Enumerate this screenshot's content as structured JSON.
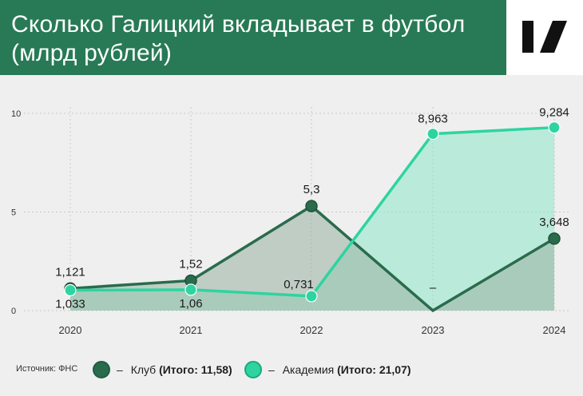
{
  "header": {
    "title_line1": "Сколько Галицкий вкладывает в футбол",
    "title_line2": "(млрд рублей)"
  },
  "footer": {
    "source": "Источник: ФНС",
    "legend": [
      {
        "dash": "–",
        "name": "Клуб",
        "total": "(Итого: 11,58)",
        "color": "#2a6b4c"
      },
      {
        "dash": "–",
        "name": "Академия",
        "total": "(Итого: 21,07)",
        "color": "#2ed4a0"
      }
    ]
  },
  "chart_data": {
    "type": "line",
    "x": [
      "2020",
      "2021",
      "2022",
      "2023",
      "2024"
    ],
    "ylim": [
      0,
      10
    ],
    "yticks": [
      "0",
      "5",
      "10"
    ],
    "grid": "dashed",
    "series": [
      {
        "name": "Клуб",
        "values": [
          1.121,
          1.52,
          5.3,
          0,
          3.648
        ],
        "labels": [
          "1,121",
          "1,52",
          "5,3",
          "–",
          "3,648"
        ],
        "color": "#2a6b4c",
        "fill": "#9fb5a8"
      },
      {
        "name": "Академия",
        "values": [
          1.033,
          1.06,
          0.731,
          8.963,
          9.284
        ],
        "labels": [
          "1,033",
          "1,06",
          "0,731",
          "8,963",
          "9,284"
        ],
        "color": "#2ed4a0",
        "fill": "#8ee6c8"
      }
    ]
  }
}
